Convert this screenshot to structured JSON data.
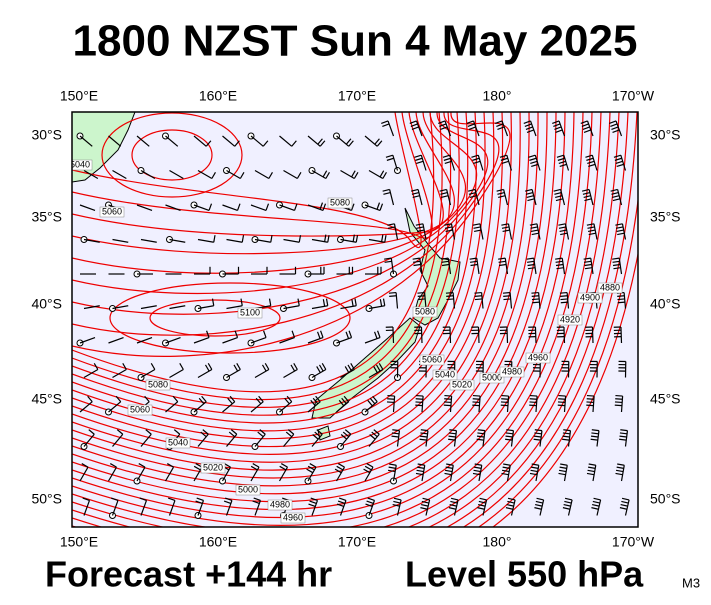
{
  "header": {
    "title": "1800 NZST Sun 4 May 2025"
  },
  "axes": {
    "top": [
      "150°E",
      "160°E",
      "170°E",
      "180°",
      "170°W"
    ],
    "bottom": [
      "150°E",
      "160°E",
      "170°E",
      "180°",
      "170°W"
    ],
    "left": [
      "30°S",
      "35°S",
      "40°S",
      "45°S",
      "50°S"
    ],
    "right": [
      "30°S",
      "35°S",
      "40°S",
      "45°S",
      "50°S"
    ]
  },
  "contour_labels": [
    "5040",
    "5060",
    "5080",
    "5100",
    "5080",
    "5060",
    "5040",
    "5020",
    "5080",
    "5060",
    "5040",
    "5020",
    "5000",
    "4980",
    "4960",
    "5000",
    "4980",
    "4960",
    "4920",
    "4900",
    "4880"
  ],
  "footer": {
    "forecast": "Forecast +144 hr",
    "level": "Level 550 hPa",
    "code": "M3"
  }
}
